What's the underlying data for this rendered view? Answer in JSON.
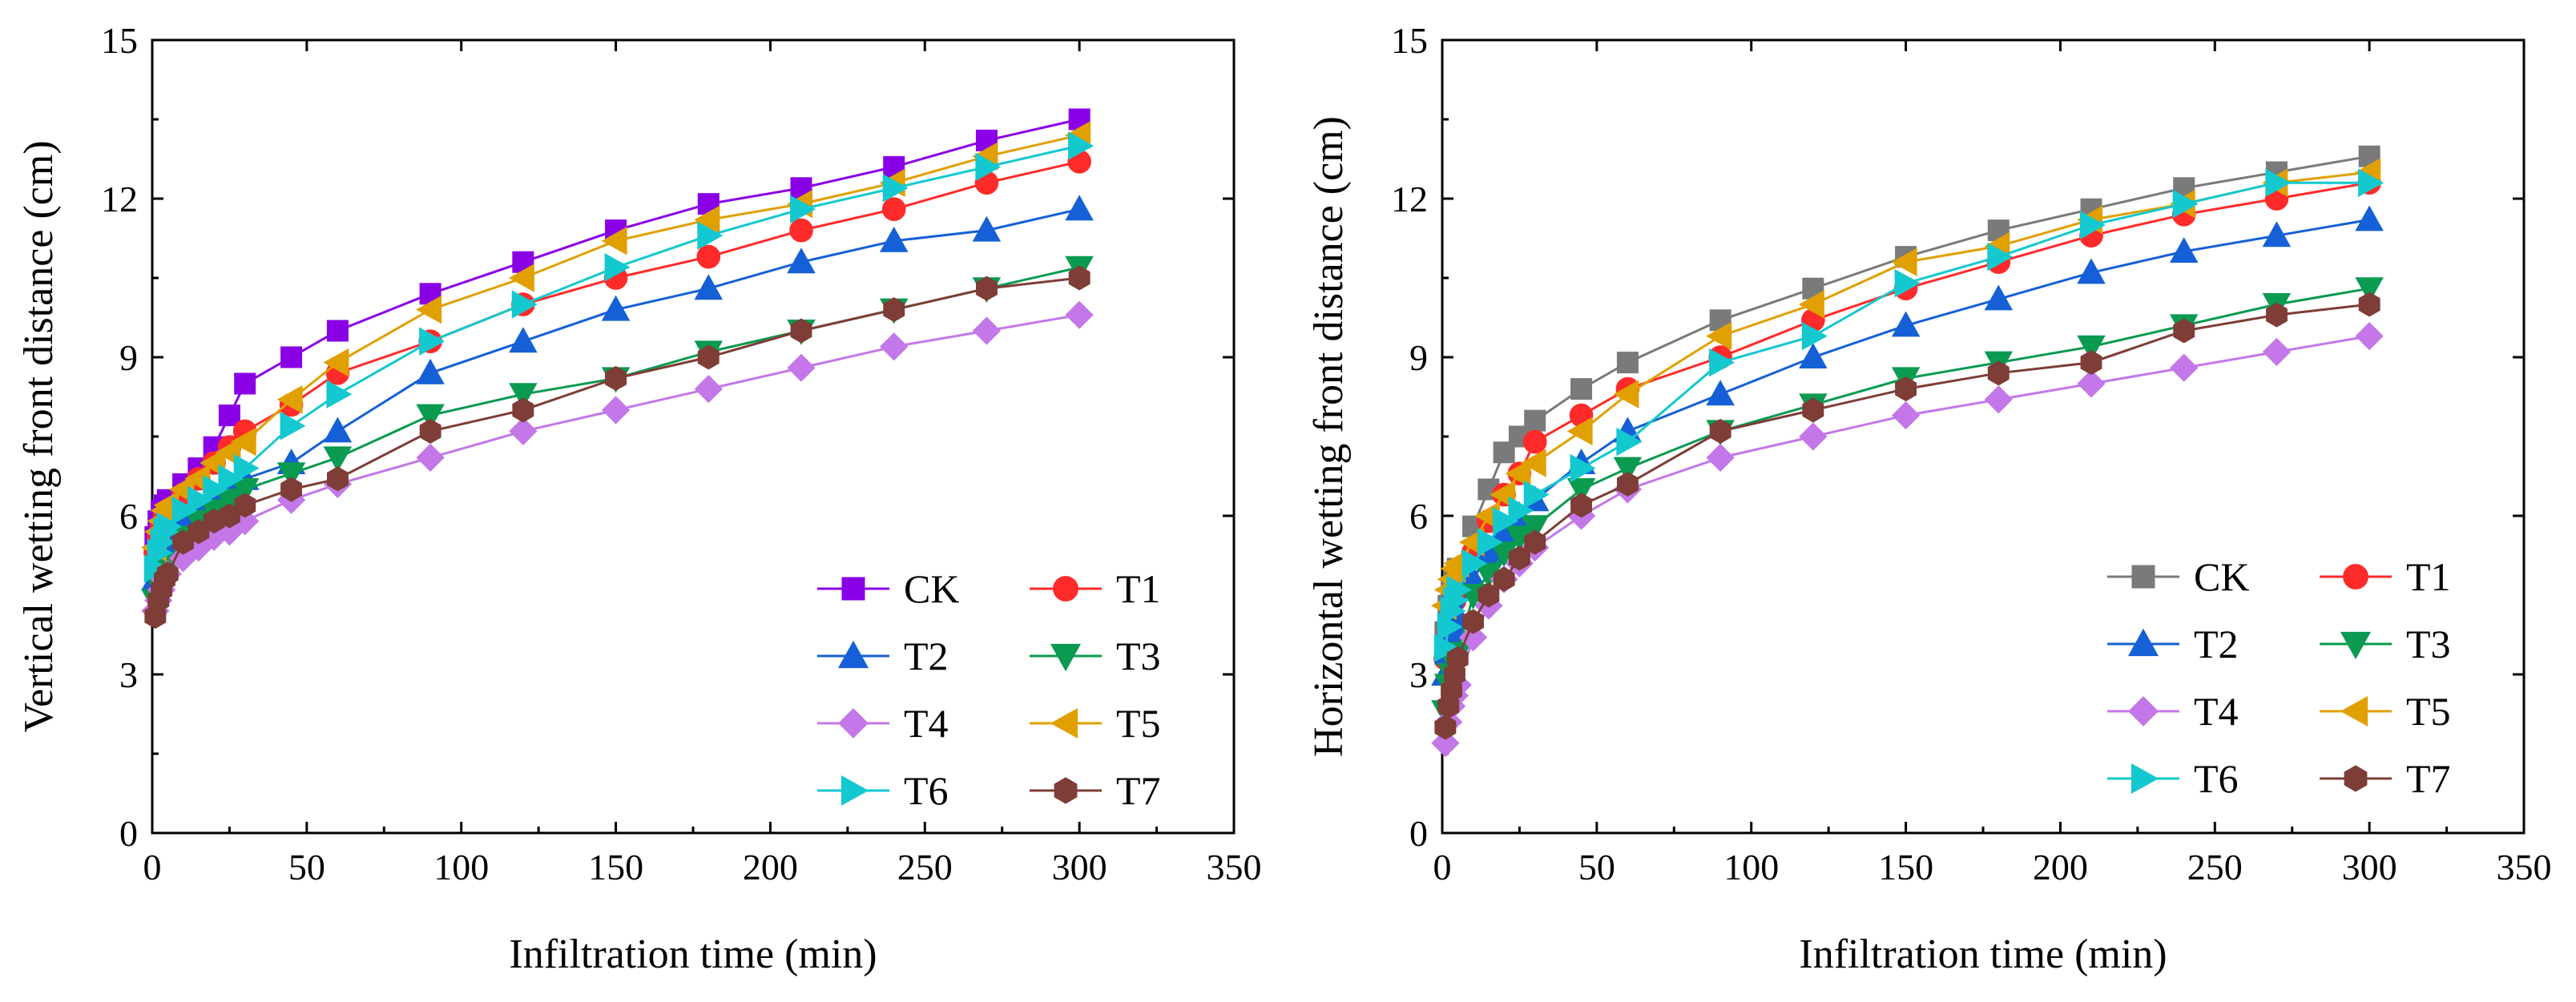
{
  "chart_data": [
    {
      "type": "line",
      "panel": "left",
      "xlabel": "Infiltration time (min)",
      "ylabel": "Vertical wetting front distance (cm)",
      "xlim": [
        0,
        350
      ],
      "ylim": [
        0,
        15
      ],
      "xticks": [
        "0",
        "50",
        "100",
        "150",
        "200",
        "250",
        "300",
        "350"
      ],
      "yticks": [
        "0",
        "3",
        "6",
        "9",
        "12",
        "15"
      ],
      "x": [
        1,
        2,
        3,
        4,
        5,
        10,
        15,
        20,
        25,
        30,
        45,
        60,
        90,
        120,
        150,
        180,
        210,
        240,
        270,
        300
      ],
      "legend_position": "bottom-right",
      "series": [
        {
          "name": "CK",
          "color": "#8a00e6",
          "marker": "square",
          "values": [
            5.6,
            5.9,
            6.1,
            6.2,
            6.3,
            6.6,
            6.9,
            7.3,
            7.9,
            8.5,
            9.0,
            9.5,
            10.2,
            10.8,
            11.4,
            11.9,
            12.2,
            12.6,
            13.1,
            13.5
          ]
        },
        {
          "name": "T1",
          "color": "#ff2a2a",
          "marker": "circle",
          "values": [
            5.3,
            5.6,
            5.8,
            6.0,
            6.1,
            6.4,
            6.7,
            7.0,
            7.3,
            7.6,
            8.1,
            8.7,
            9.3,
            10.0,
            10.5,
            10.9,
            11.4,
            11.8,
            12.3,
            12.7
          ]
        },
        {
          "name": "T2",
          "color": "#1560d6",
          "marker": "triangle-up",
          "values": [
            4.8,
            5.1,
            5.3,
            5.5,
            5.6,
            5.9,
            6.1,
            6.3,
            6.5,
            6.7,
            7.0,
            7.6,
            8.7,
            9.3,
            9.9,
            10.3,
            10.8,
            11.2,
            11.4,
            11.8
          ]
        },
        {
          "name": "T3",
          "color": "#0a9a50",
          "marker": "triangle-down",
          "values": [
            4.4,
            4.7,
            4.9,
            5.0,
            5.1,
            5.6,
            5.9,
            6.1,
            6.3,
            6.5,
            6.8,
            7.1,
            7.9,
            8.3,
            8.6,
            9.1,
            9.5,
            9.9,
            10.3,
            10.7
          ]
        },
        {
          "name": "T4",
          "color": "#c377e8",
          "marker": "diamond",
          "values": [
            4.2,
            4.4,
            4.6,
            4.8,
            4.9,
            5.2,
            5.4,
            5.6,
            5.7,
            5.9,
            6.3,
            6.6,
            7.1,
            7.6,
            8.0,
            8.4,
            8.8,
            9.2,
            9.5,
            9.8
          ]
        },
        {
          "name": "T5",
          "color": "#e0a000",
          "marker": "triangle-left",
          "values": [
            5.4,
            5.7,
            5.9,
            6.1,
            6.2,
            6.5,
            6.7,
            7.0,
            7.2,
            7.4,
            8.2,
            8.9,
            9.9,
            10.5,
            11.2,
            11.6,
            11.9,
            12.3,
            12.8,
            13.2
          ]
        },
        {
          "name": "T6",
          "color": "#14c8cf",
          "marker": "triangle-right",
          "values": [
            5.0,
            5.3,
            5.5,
            5.7,
            5.8,
            6.1,
            6.3,
            6.5,
            6.7,
            6.9,
            7.7,
            8.3,
            9.3,
            10.0,
            10.7,
            11.3,
            11.8,
            12.2,
            12.6,
            13.0
          ]
        },
        {
          "name": "T7",
          "color": "#7e3d36",
          "marker": "hexagon",
          "values": [
            4.1,
            4.4,
            4.6,
            4.8,
            4.9,
            5.5,
            5.7,
            5.9,
            6.0,
            6.2,
            6.5,
            6.7,
            7.6,
            8.0,
            8.6,
            9.0,
            9.5,
            9.9,
            10.3,
            10.5
          ]
        }
      ]
    },
    {
      "type": "line",
      "panel": "right",
      "xlabel": "Infiltration time (min)",
      "ylabel": "Horizontal wetting front distance (cm)",
      "xlim": [
        0,
        350
      ],
      "ylim": [
        0,
        15
      ],
      "xticks": [
        "0",
        "50",
        "100",
        "150",
        "200",
        "250",
        "300",
        "350"
      ],
      "yticks": [
        "0",
        "3",
        "6",
        "9",
        "12",
        "15"
      ],
      "x": [
        1,
        2,
        3,
        4,
        5,
        10,
        15,
        20,
        25,
        30,
        45,
        60,
        90,
        120,
        150,
        180,
        210,
        240,
        270,
        300
      ],
      "legend_position": "bottom-right",
      "series": [
        {
          "name": "CK",
          "color": "#7a7a7a",
          "marker": "square",
          "values": [
            3.8,
            4.3,
            4.6,
            4.8,
            5.0,
            5.8,
            6.5,
            7.2,
            7.5,
            7.8,
            8.4,
            8.9,
            9.7,
            10.3,
            10.9,
            11.4,
            11.8,
            12.2,
            12.5,
            12.8
          ]
        },
        {
          "name": "T1",
          "color": "#ff2a2a",
          "marker": "circle",
          "values": [
            3.3,
            3.8,
            4.1,
            4.4,
            4.6,
            5.3,
            5.9,
            6.4,
            6.8,
            7.4,
            7.9,
            8.4,
            9.0,
            9.7,
            10.3,
            10.8,
            11.3,
            11.7,
            12.0,
            12.3
          ]
        },
        {
          "name": "T2",
          "color": "#1560d6",
          "marker": "triangle-up",
          "values": [
            3.0,
            3.4,
            3.7,
            3.9,
            4.1,
            4.8,
            5.3,
            5.7,
            6.0,
            6.3,
            7.0,
            7.6,
            8.3,
            9.0,
            9.6,
            10.1,
            10.6,
            11.0,
            11.3,
            11.6
          ]
        },
        {
          "name": "T3",
          "color": "#0a9a50",
          "marker": "triangle-down",
          "values": [
            2.3,
            2.8,
            3.0,
            3.2,
            3.4,
            4.5,
            4.9,
            5.3,
            5.6,
            5.8,
            6.5,
            6.9,
            7.6,
            8.1,
            8.6,
            8.9,
            9.2,
            9.6,
            10.0,
            10.3
          ]
        },
        {
          "name": "T4",
          "color": "#c377e8",
          "marker": "diamond",
          "values": [
            1.7,
            2.1,
            2.4,
            2.6,
            2.8,
            3.7,
            4.3,
            4.8,
            5.1,
            5.4,
            6.0,
            6.5,
            7.1,
            7.5,
            7.9,
            8.2,
            8.5,
            8.8,
            9.1,
            9.4
          ]
        },
        {
          "name": "T5",
          "color": "#e0a000",
          "marker": "triangle-left",
          "values": [
            4.3,
            4.6,
            4.8,
            5.0,
            5.1,
            5.5,
            6.0,
            6.4,
            6.8,
            7.0,
            7.6,
            8.3,
            9.4,
            10.0,
            10.8,
            11.1,
            11.6,
            11.9,
            12.3,
            12.5
          ]
        },
        {
          "name": "T6",
          "color": "#14c8cf",
          "marker": "triangle-right",
          "values": [
            3.5,
            3.9,
            4.2,
            4.4,
            4.6,
            5.1,
            5.5,
            5.9,
            6.1,
            6.4,
            6.9,
            7.4,
            8.9,
            9.4,
            10.4,
            10.9,
            11.5,
            11.9,
            12.3,
            12.3
          ]
        },
        {
          "name": "T7",
          "color": "#7e3d36",
          "marker": "hexagon",
          "values": [
            2.0,
            2.4,
            2.7,
            3.0,
            3.3,
            4.0,
            4.5,
            4.8,
            5.2,
            5.5,
            6.2,
            6.6,
            7.6,
            8.0,
            8.4,
            8.7,
            8.9,
            9.5,
            9.8,
            10.0
          ]
        }
      ]
    }
  ]
}
